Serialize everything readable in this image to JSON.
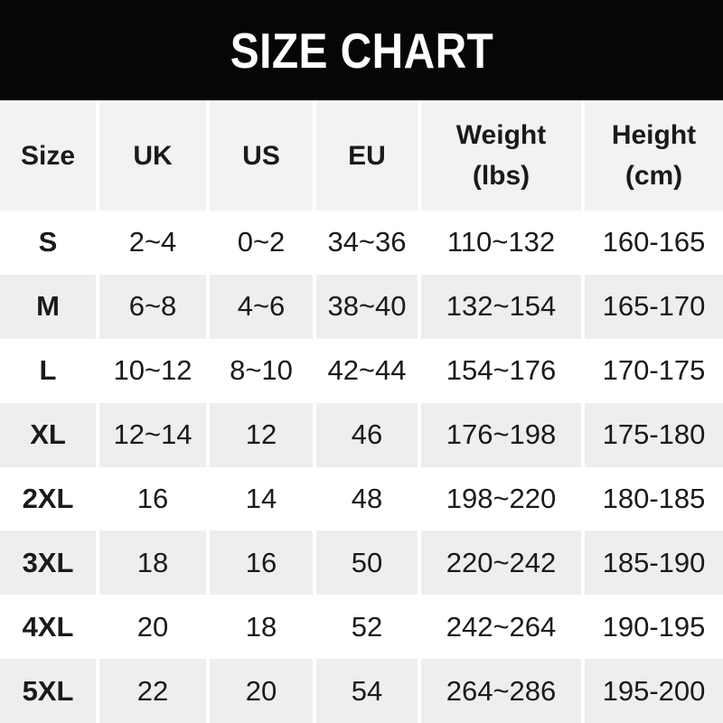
{
  "colors": {
    "banner_bg": "#060606",
    "title_text": "#ffffff",
    "header_row_bg": "#f2f2f3",
    "row_bg": "#ffffff",
    "row_alt_bg": "#eeeeef",
    "divider": "#ffffff",
    "text": "#1a1a1c"
  },
  "chart_data": {
    "type": "table",
    "title": "SIZE CHART",
    "columns": [
      {
        "label": "Size",
        "unit": ""
      },
      {
        "label": "UK",
        "unit": ""
      },
      {
        "label": "US",
        "unit": ""
      },
      {
        "label": "EU",
        "unit": ""
      },
      {
        "label": "Weight",
        "unit": "(lbs)"
      },
      {
        "label": "Height",
        "unit": "(cm)"
      }
    ],
    "rows": [
      [
        "S",
        "2~4",
        "0~2",
        "34~36",
        "110~132",
        "160-165"
      ],
      [
        "M",
        "6~8",
        "4~6",
        "38~40",
        "132~154",
        "165-170"
      ],
      [
        "L",
        "10~12",
        "8~10",
        "42~44",
        "154~176",
        "170-175"
      ],
      [
        "XL",
        "12~14",
        "12",
        "46",
        "176~198",
        "175-180"
      ],
      [
        "2XL",
        "16",
        "14",
        "48",
        "198~220",
        "180-185"
      ],
      [
        "3XL",
        "18",
        "16",
        "50",
        "220~242",
        "185-190"
      ],
      [
        "4XL",
        "20",
        "18",
        "52",
        "242~264",
        "190-195"
      ],
      [
        "5XL",
        "22",
        "20",
        "54",
        "264~286",
        "195-200"
      ]
    ]
  }
}
